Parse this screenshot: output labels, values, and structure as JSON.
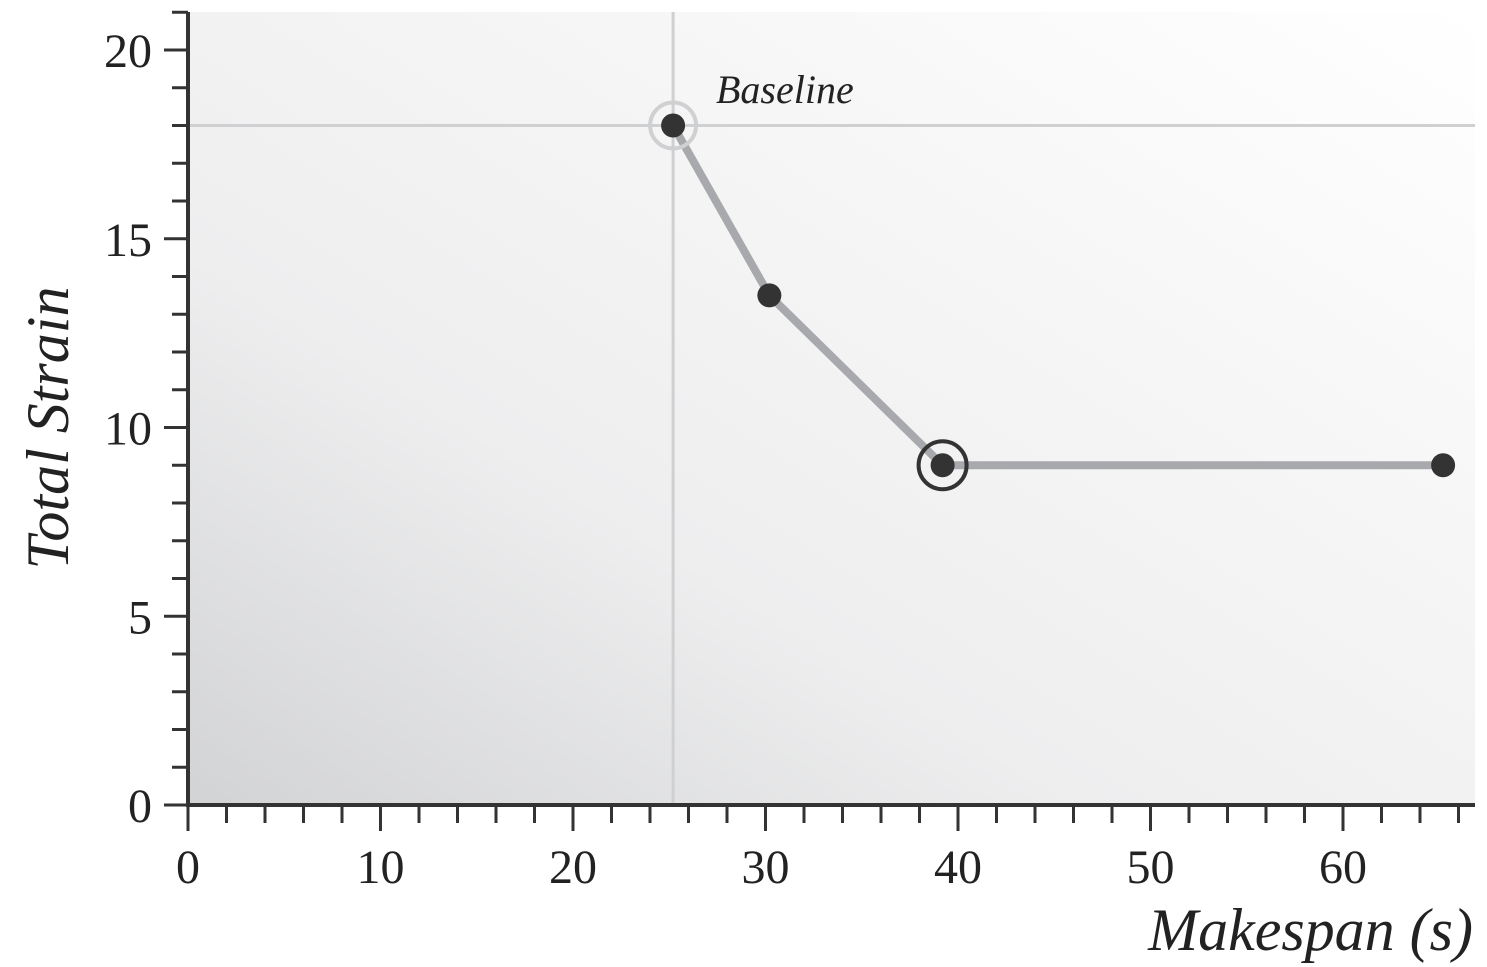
{
  "chart_data": {
    "type": "line",
    "xlabel": "Makespan (s)",
    "ylabel": "Total Strain",
    "xlim": [
      0,
      67
    ],
    "ylim": [
      0,
      21
    ],
    "x_ticks": [
      "0",
      "10",
      "20",
      "30",
      "40",
      "50",
      "60"
    ],
    "y_ticks": [
      "0",
      "5",
      "10",
      "15",
      "20"
    ],
    "series": [
      {
        "points": [
          {
            "x": 25.2,
            "y": 18.0
          },
          {
            "x": 30.2,
            "y": 13.5
          },
          {
            "x": 39.2,
            "y": 9.0
          },
          {
            "x": 65.2,
            "y": 9.0
          }
        ]
      }
    ],
    "highlighted_points": [
      {
        "x": 25.2,
        "y": 18.0,
        "style": "baseline"
      },
      {
        "x": 39.2,
        "y": 9.0,
        "style": "selected"
      }
    ],
    "reference_lines": {
      "x": 25.2,
      "y": 18.0
    },
    "annotations": [
      {
        "text": "Baseline",
        "x": 25.2,
        "y": 18.0
      }
    ],
    "grid": false,
    "colors": {
      "line": "#a7a9ac",
      "point": "#333333",
      "reference": "#cfd0d2",
      "axis": "#333333"
    }
  }
}
